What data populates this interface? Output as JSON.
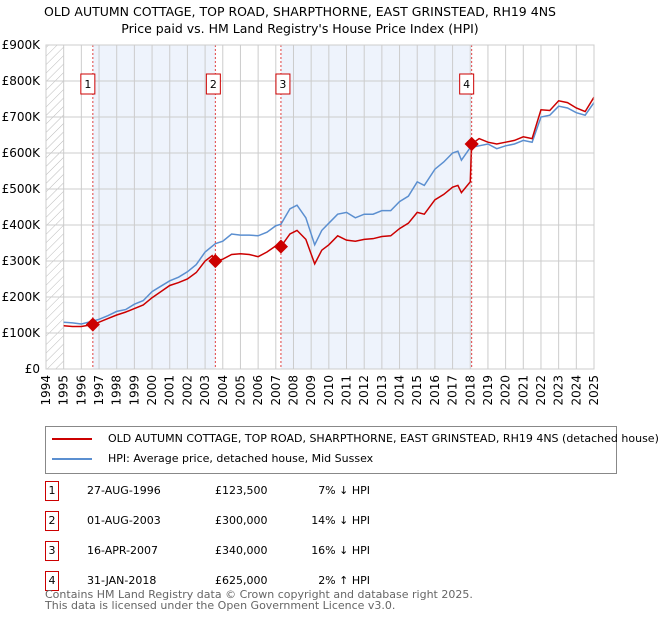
{
  "chart_data": {
    "type": "line",
    "title": "OLD AUTUMN COTTAGE, TOP ROAD, SHARPTHORNE, EAST GRINSTEAD, RH19 4NS",
    "subtitle": "Price paid vs. HM Land Registry's House Price Index (HPI)",
    "ylim": [
      0,
      900000
    ],
    "xlim": [
      1994,
      2025
    ],
    "yticks": [
      {
        "v": 0,
        "label": "£0"
      },
      {
        "v": 100000,
        "label": "£100K"
      },
      {
        "v": 200000,
        "label": "£200K"
      },
      {
        "v": 300000,
        "label": "£300K"
      },
      {
        "v": 400000,
        "label": "£400K"
      },
      {
        "v": 500000,
        "label": "£500K"
      },
      {
        "v": 600000,
        "label": "£600K"
      },
      {
        "v": 700000,
        "label": "£700K"
      },
      {
        "v": 800000,
        "label": "£800K"
      },
      {
        "v": 900000,
        "label": "£900K"
      }
    ],
    "xticks": [
      "1994",
      "1995",
      "1996",
      "1997",
      "1998",
      "1999",
      "2000",
      "2001",
      "2002",
      "2003",
      "2004",
      "2005",
      "2006",
      "2007",
      "2008",
      "2009",
      "2010",
      "2011",
      "2012",
      "2013",
      "2014",
      "2015",
      "2016",
      "2017",
      "2018",
      "2019",
      "2020",
      "2021",
      "2022",
      "2023",
      "2024",
      "2025"
    ],
    "series": [
      {
        "name": "OLD AUTUMN COTTAGE, TOP ROAD, SHARPTHORNE, EAST GRINSTEAD, RH19 4NS (detached house)",
        "color": "#cc0000",
        "x": [
          1995,
          1995.5,
          1996,
          1996.65,
          1997,
          1997.5,
          1998,
          1998.5,
          1999,
          1999.5,
          2000,
          2000.5,
          2001,
          2001.5,
          2002,
          2002.5,
          2003,
          2003.4,
          2003.58,
          2004,
          2004.5,
          2005,
          2005.5,
          2006,
          2006.5,
          2007,
          2007.29,
          2007.8,
          2008.2,
          2008.7,
          2009.2,
          2009.6,
          2010,
          2010.5,
          2011,
          2011.5,
          2012,
          2012.5,
          2013,
          2013.5,
          2014,
          2014.5,
          2015,
          2015.4,
          2016,
          2016.5,
          2017,
          2017.3,
          2017.5,
          2018.0,
          2018.08,
          2018.5,
          2019,
          2019.5,
          2020,
          2020.5,
          2021,
          2021.5,
          2022,
          2022.5,
          2023,
          2023.5,
          2024,
          2024.5,
          2025
        ],
        "y": [
          120000,
          118000,
          118000,
          123500,
          130000,
          140000,
          150000,
          158000,
          168000,
          178000,
          198000,
          215000,
          232000,
          240000,
          250000,
          268000,
          300000,
          315000,
          300000,
          305000,
          318000,
          320000,
          318000,
          312000,
          325000,
          342000,
          340000,
          375000,
          385000,
          360000,
          292000,
          330000,
          345000,
          370000,
          358000,
          355000,
          360000,
          362000,
          368000,
          370000,
          390000,
          405000,
          435000,
          430000,
          470000,
          485000,
          505000,
          510000,
          490000,
          520000,
          625000,
          640000,
          630000,
          625000,
          630000,
          635000,
          645000,
          640000,
          720000,
          718000,
          745000,
          740000,
          725000,
          715000,
          755000
        ]
      },
      {
        "name": "HPI: Average price, detached house, Mid Sussex",
        "color": "#5b8fd0",
        "x": [
          1995,
          1995.5,
          1996,
          1996.65,
          1997,
          1997.5,
          1998,
          1998.5,
          1999,
          1999.5,
          2000,
          2000.5,
          2001,
          2001.5,
          2002,
          2002.5,
          2003,
          2003.58,
          2004,
          2004.5,
          2005,
          2005.5,
          2006,
          2006.5,
          2007,
          2007.29,
          2007.8,
          2008.2,
          2008.7,
          2009.2,
          2009.6,
          2010,
          2010.5,
          2011,
          2011.5,
          2012,
          2012.5,
          2013,
          2013.5,
          2014,
          2014.5,
          2015,
          2015.4,
          2016,
          2016.5,
          2017,
          2017.3,
          2017.5,
          2018,
          2018.5,
          2019,
          2019.5,
          2020,
          2020.5,
          2021,
          2021.5,
          2022,
          2022.5,
          2023,
          2023.5,
          2024,
          2024.5,
          2025
        ],
        "y": [
          130000,
          128000,
          125000,
          133000,
          138000,
          148000,
          160000,
          165000,
          180000,
          190000,
          215000,
          230000,
          245000,
          255000,
          270000,
          290000,
          325000,
          348000,
          355000,
          375000,
          372000,
          372000,
          370000,
          380000,
          398000,
          402000,
          445000,
          455000,
          420000,
          345000,
          385000,
          405000,
          430000,
          435000,
          420000,
          430000,
          430000,
          440000,
          440000,
          465000,
          480000,
          520000,
          510000,
          555000,
          575000,
          600000,
          605000,
          580000,
          615000,
          620000,
          625000,
          612000,
          620000,
          625000,
          635000,
          630000,
          700000,
          705000,
          730000,
          725000,
          712000,
          705000,
          740000
        ]
      }
    ],
    "sales": [
      {
        "label": "1",
        "x": 1996.65,
        "y": 123500
      },
      {
        "label": "2",
        "x": 2003.58,
        "y": 300000
      },
      {
        "label": "3",
        "x": 2007.29,
        "y": 340000
      },
      {
        "label": "4",
        "x": 2018.08,
        "y": 625000
      }
    ]
  },
  "legend": {
    "red": "OLD AUTUMN COTTAGE, TOP ROAD, SHARPTHORNE, EAST GRINSTEAD, RH19 4NS (detached house)",
    "blue": "HPI: Average price, detached house, Mid Sussex"
  },
  "table": [
    {
      "n": "1",
      "date": "27-AUG-1996",
      "price": "£123,500",
      "hpi": "7% ↓ HPI"
    },
    {
      "n": "2",
      "date": "01-AUG-2003",
      "price": "£300,000",
      "hpi": "14% ↓ HPI"
    },
    {
      "n": "3",
      "date": "16-APR-2007",
      "price": "£340,000",
      "hpi": "16% ↓ HPI"
    },
    {
      "n": "4",
      "date": "31-JAN-2018",
      "price": "£625,000",
      "hpi": "2% ↑ HPI"
    }
  ],
  "footer": {
    "line1": "Contains HM Land Registry data © Crown copyright and database right 2025.",
    "line2": "This data is licensed under the Open Government Licence v3.0."
  }
}
